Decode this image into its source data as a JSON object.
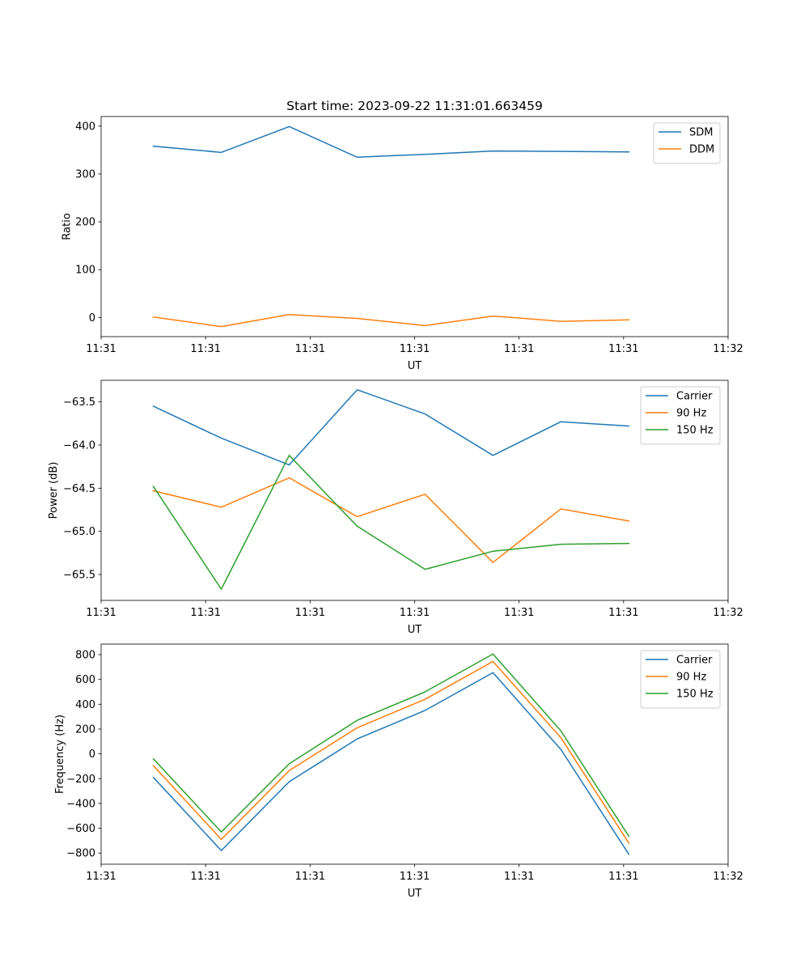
{
  "chart_data": [
    {
      "type": "line",
      "title": "Start time: 2023-09-22 11:31:01.663459",
      "xlabel": "UT",
      "ylabel": "Ratio",
      "xlim": [
        0,
        12
      ],
      "ylim": [
        -40,
        420
      ],
      "x_ticks": [
        0,
        2,
        4,
        6,
        8,
        10,
        12
      ],
      "x_tick_labels": [
        "11:31",
        "11:31",
        "11:31",
        "11:31",
        "11:31",
        "11:31",
        "11:32"
      ],
      "y_ticks": [
        0,
        100,
        200,
        300,
        400
      ],
      "y_tick_labels": [
        "0",
        "100",
        "200",
        "300",
        "400"
      ],
      "x": [
        1,
        2.3,
        3.6,
        4.9,
        6.2,
        7.5,
        8.8,
        10.1
      ],
      "series": [
        {
          "name": "SDM",
          "color": "#1f77b4",
          "values": [
            358,
            345,
            399,
            335,
            341,
            348,
            347,
            346
          ]
        },
        {
          "name": "DDM",
          "color": "#ff7f0e",
          "values": [
            1,
            -19,
            6,
            -2,
            -17,
            3,
            -8,
            -5
          ]
        }
      ],
      "legend_position": "top-right"
    },
    {
      "type": "line",
      "title": "",
      "xlabel": "UT",
      "ylabel": "Power (dB)",
      "xlim": [
        0,
        12
      ],
      "ylim": [
        -65.8,
        -63.25
      ],
      "x_ticks": [
        0,
        2,
        4,
        6,
        8,
        10,
        12
      ],
      "x_tick_labels": [
        "11:31",
        "11:31",
        "11:31",
        "11:31",
        "11:31",
        "11:31",
        "11:32"
      ],
      "y_ticks": [
        -65.5,
        -65.0,
        -64.5,
        -64.0,
        -63.5
      ],
      "y_tick_labels": [
        "−65.5",
        "−65.0",
        "−64.5",
        "−64.0",
        "−63.5"
      ],
      "x": [
        1,
        2.3,
        3.6,
        4.9,
        6.2,
        7.5,
        8.8,
        10.1
      ],
      "series": [
        {
          "name": "Carrier",
          "color": "#1f77b4",
          "values": [
            -63.55,
            -63.92,
            -64.23,
            -63.36,
            -63.64,
            -64.12,
            -63.73,
            -63.78
          ]
        },
        {
          "name": "90 Hz",
          "color": "#ff7f0e",
          "values": [
            -64.53,
            -64.72,
            -64.38,
            -64.83,
            -64.57,
            -65.36,
            -64.74,
            -64.88
          ]
        },
        {
          "name": "150 Hz",
          "color": "#2ca02c",
          "values": [
            -64.48,
            -65.67,
            -64.12,
            -64.94,
            -65.44,
            -65.23,
            -65.15,
            -65.14
          ]
        }
      ],
      "legend_position": "top-right"
    },
    {
      "type": "line",
      "title": "",
      "xlabel": "UT",
      "ylabel": "Frequency (Hz)",
      "xlim": [
        0,
        12
      ],
      "ylim": [
        -890,
        885
      ],
      "x_ticks": [
        0,
        2,
        4,
        6,
        8,
        10,
        12
      ],
      "x_tick_labels": [
        "11:31",
        "11:31",
        "11:31",
        "11:31",
        "11:31",
        "11:31",
        "11:32"
      ],
      "y_ticks": [
        -800,
        -600,
        -400,
        -200,
        0,
        200,
        400,
        600,
        800
      ],
      "y_tick_labels": [
        "−800",
        "−600",
        "−400",
        "−200",
        "0",
        "200",
        "400",
        "600",
        "800"
      ],
      "x": [
        1,
        2.3,
        3.6,
        4.9,
        6.2,
        7.5,
        8.8,
        10.1
      ],
      "series": [
        {
          "name": "Carrier",
          "color": "#1f77b4",
          "values": [
            -190,
            -780,
            -225,
            120,
            350,
            655,
            35,
            -810
          ]
        },
        {
          "name": "90 Hz",
          "color": "#ff7f0e",
          "values": [
            -95,
            -690,
            -135,
            210,
            440,
            745,
            130,
            -720
          ]
        },
        {
          "name": "150 Hz",
          "color": "#2ca02c",
          "values": [
            -40,
            -630,
            -80,
            270,
            500,
            805,
            185,
            -665
          ]
        }
      ],
      "legend_position": "top-right"
    }
  ]
}
